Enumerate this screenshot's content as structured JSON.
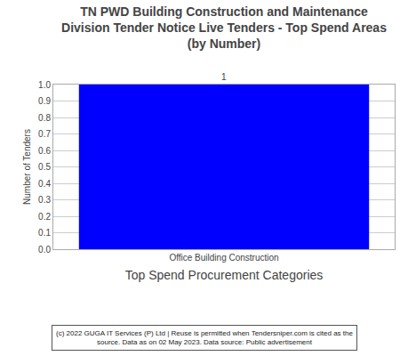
{
  "chart_data": {
    "type": "bar",
    "title": [
      "TN PWD Building Construction and Maintenance",
      "Division Tender Notice Live Tenders - Top Spend Areas",
      "(by Number)"
    ],
    "categories": [
      "Office Building Construction"
    ],
    "values": [
      1
    ],
    "color": "#0000FF",
    "xlabel": "Top Spend Procurement Categories",
    "ylabel": "Number of Tenders",
    "ylim": [
      0.0,
      1.0
    ],
    "yticks": [
      {
        "value": 0,
        "label": "0.0"
      },
      0.1,
      0.2,
      0.3,
      0.4,
      0.5,
      0.6,
      0.7,
      0.8,
      0.9,
      {
        "value": 1,
        "label": "1.0"
      }
    ],
    "grid": true,
    "data_labels": true,
    "annotations": [
      "(c) 2022 GUGA IT Services (P) Ltd | Reuse is permitted when Tendersniper.com is cited as the",
      "source. Data as on 02 May 2023. Data source: Public advertisement"
    ]
  }
}
